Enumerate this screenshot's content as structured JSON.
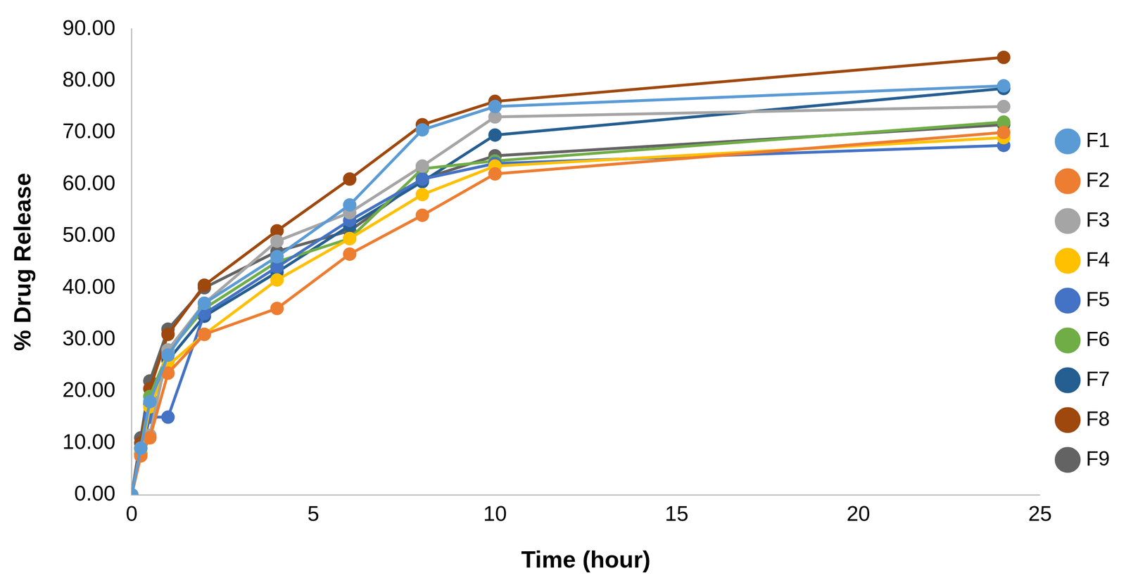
{
  "chart_data": {
    "type": "line",
    "x_label": "Time (hour)",
    "y_label": "% Drug Release",
    "x": [
      0,
      0.25,
      0.5,
      1,
      2,
      4,
      6,
      8,
      10,
      24
    ],
    "series": [
      {
        "name": "F1",
        "color": "#5B9BD5",
        "values": [
          0,
          9,
          18,
          27,
          37,
          46,
          56,
          70.5,
          75,
          79
        ]
      },
      {
        "name": "F2",
        "color": "#ED7D31",
        "values": [
          0,
          7.5,
          11,
          23.5,
          31,
          36,
          46.5,
          54,
          62,
          70
        ]
      },
      {
        "name": "F3",
        "color": "#A5A5A5",
        "values": [
          0,
          9,
          11.5,
          28,
          37,
          49,
          54.5,
          63.5,
          73,
          75
        ]
      },
      {
        "name": "F4",
        "color": "#FFC000",
        "values": [
          0,
          8,
          17,
          25,
          31,
          41.5,
          49.5,
          58,
          63.5,
          69
        ]
      },
      {
        "name": "F5",
        "color": "#4472C4",
        "values": [
          0,
          8,
          15,
          15,
          35,
          44,
          53,
          61,
          64,
          67.5
        ]
      },
      {
        "name": "F6",
        "color": "#70AD47",
        "values": [
          0,
          9,
          19,
          27.5,
          36,
          45,
          49.5,
          63,
          64.5,
          72
        ]
      },
      {
        "name": "F7",
        "color": "#255E91",
        "values": [
          0,
          8,
          17.5,
          26,
          34.5,
          43,
          52,
          60.5,
          69.5,
          78.5
        ]
      },
      {
        "name": "F8",
        "color": "#9E480E",
        "values": [
          0,
          10,
          20.5,
          31,
          40.5,
          51,
          61,
          71.5,
          76,
          84.5
        ]
      },
      {
        "name": "F9",
        "color": "#636363",
        "values": [
          0,
          11,
          22,
          32,
          40,
          47,
          51,
          61,
          65.5,
          71.5
        ]
      }
    ],
    "xlim": [
      0,
      25
    ],
    "xticks": [
      0,
      5,
      10,
      15,
      20,
      25
    ],
    "ylim": [
      0,
      90
    ],
    "yticks": [
      {
        "value": 0,
        "label": "0.00"
      },
      {
        "value": 10,
        "label": "10.00"
      },
      {
        "value": 20,
        "label": "20.00"
      },
      {
        "value": 30,
        "label": "30.00"
      },
      {
        "value": 40,
        "label": "40.00"
      },
      {
        "value": 50,
        "label": "50.00"
      },
      {
        "value": 60,
        "label": "60.00"
      },
      {
        "value": 70,
        "label": "70.00"
      },
      {
        "value": 80,
        "label": "80.00"
      },
      {
        "value": 90,
        "label": "90.00"
      }
    ],
    "grid": false,
    "legend": "right",
    "marker": "circle"
  }
}
